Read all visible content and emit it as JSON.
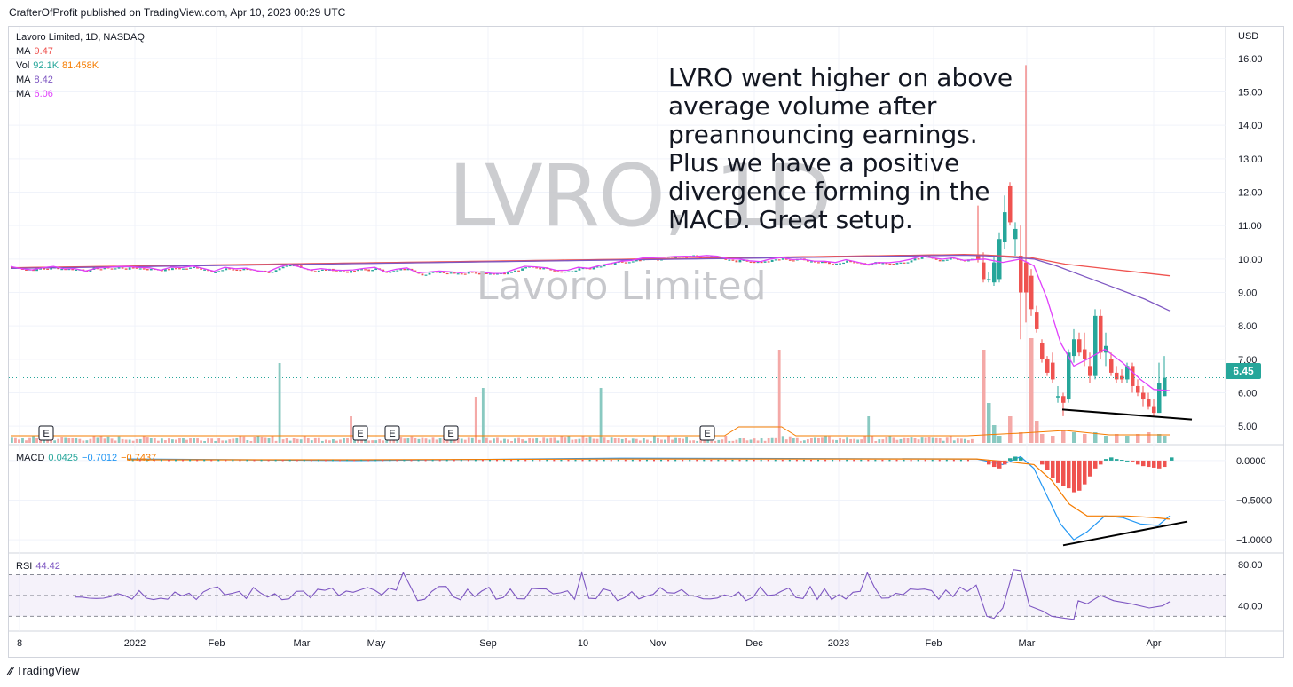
{
  "header": {
    "published": "CrafterOfProfit published on TradingView.com, Apr 10, 2023 00:29 UTC"
  },
  "legend": {
    "symbol": "Lavoro Limited, 1D, NASDAQ",
    "ma1": {
      "label": "MA",
      "value": "9.47",
      "color": "#ef5350"
    },
    "vol": {
      "label": "Vol",
      "value1": "92.1K",
      "value2": "81.458K",
      "color1": "#26a69a",
      "color2": "#f57c00"
    },
    "ma2": {
      "label": "MA",
      "value": "8.42",
      "color": "#7e57c2"
    },
    "ma3": {
      "label": "MA",
      "value": "6.06",
      "color": "#e040fb"
    }
  },
  "macd_legend": {
    "label": "MACD",
    "v1": "0.0425",
    "v2": "−0.7012",
    "v3": "−0.7437",
    "c1": "#26a69a",
    "c2": "#2196f3",
    "c3": "#f57c00"
  },
  "rsi_legend": {
    "label": "RSI",
    "value": "44.42",
    "color": "#7e57c2"
  },
  "annotation": {
    "lines": [
      "LVRO went higher on above",
      "average volume after",
      "preannouncing earnings.",
      "Plus we have a positive",
      "divergence forming in the",
      "MACD. Great setup."
    ]
  },
  "watermark": {
    "ticker": "LVRO, 1D",
    "name": "Lavoro Limited"
  },
  "price_axis": {
    "currency": "USD",
    "last_price": "6.45",
    "last_color": "#26a69a"
  },
  "footer": {
    "brand": "TradingView"
  },
  "earnings_marker": "E",
  "chart_data": {
    "type": "candlestick",
    "price_ylim": [
      4.5,
      16.5
    ],
    "price_ticks": [
      "16.00",
      "15.00",
      "14.00",
      "13.00",
      "12.00",
      "11.00",
      "10.00",
      "9.00",
      "8.00",
      "7.00",
      "6.00",
      "5.00"
    ],
    "macd_ticks": [
      "0.0000",
      "−0.5000",
      "−1.0000"
    ],
    "macd_ylim": [
      -1.1,
      0.1
    ],
    "rsi_ticks": [
      "80.00",
      "40.00"
    ],
    "rsi_ylim": [
      20,
      85
    ],
    "rsi_band": [
      30,
      70
    ],
    "x_labels": [
      "8",
      "2022",
      "Feb",
      "Mar",
      "May",
      "Sep",
      "10",
      "Nov",
      "Dec",
      "2023",
      "Feb",
      "Mar",
      "Apr"
    ],
    "earnings_count": 6,
    "series": [
      {
        "name": "MA",
        "value": "9.47"
      },
      {
        "name": "MA",
        "value": "8.42"
      },
      {
        "name": "MA",
        "value": "6.06"
      }
    ],
    "late_candles": [
      {
        "o": 10.1,
        "h": 11.6,
        "l": 9.9,
        "c": 10.0
      },
      {
        "o": 9.9,
        "h": 10.2,
        "l": 9.3,
        "c": 9.4
      },
      {
        "o": 9.4,
        "h": 9.6,
        "l": 9.3,
        "c": 9.4
      },
      {
        "o": 9.3,
        "h": 10.1,
        "l": 9.2,
        "c": 9.9
      },
      {
        "o": 9.4,
        "h": 10.8,
        "l": 9.3,
        "c": 10.6
      },
      {
        "o": 10.5,
        "h": 11.9,
        "l": 10.3,
        "c": 11.4
      },
      {
        "o": 12.2,
        "h": 12.3,
        "l": 11.0,
        "c": 11.1
      },
      {
        "o": 10.6,
        "h": 11.1,
        "l": 10.1,
        "c": 10.9
      },
      {
        "o": 10.1,
        "h": 11.0,
        "l": 7.6,
        "c": 9.0
      },
      {
        "o": 9.9,
        "h": 15.8,
        "l": 8.1,
        "c": 9.0
      },
      {
        "o": 9.5,
        "h": 9.7,
        "l": 8.3,
        "c": 8.5
      },
      {
        "o": 8.4,
        "h": 8.6,
        "l": 7.8,
        "c": 7.9
      },
      {
        "o": 7.5,
        "h": 7.6,
        "l": 6.9,
        "c": 7.0
      },
      {
        "o": 7.0,
        "h": 7.1,
        "l": 6.5,
        "c": 6.6
      },
      {
        "o": 6.9,
        "h": 7.2,
        "l": 6.3,
        "c": 6.4
      },
      {
        "o": 5.9,
        "h": 6.2,
        "l": 5.7,
        "c": 5.9
      },
      {
        "o": 5.9,
        "h": 6.0,
        "l": 5.3,
        "c": 5.7
      },
      {
        "o": 5.8,
        "h": 7.3,
        "l": 5.7,
        "c": 7.2
      },
      {
        "o": 7.1,
        "h": 7.9,
        "l": 6.9,
        "c": 7.6
      },
      {
        "o": 7.6,
        "h": 7.8,
        "l": 7.1,
        "c": 7.2
      },
      {
        "o": 7.3,
        "h": 7.8,
        "l": 6.8,
        "c": 7.0
      },
      {
        "o": 6.8,
        "h": 7.2,
        "l": 6.3,
        "c": 6.5
      },
      {
        "o": 6.5,
        "h": 8.5,
        "l": 6.4,
        "c": 8.3
      },
      {
        "o": 8.3,
        "h": 8.5,
        "l": 7.0,
        "c": 7.2
      },
      {
        "o": 7.2,
        "h": 7.8,
        "l": 6.8,
        "c": 7.4
      },
      {
        "o": 7.0,
        "h": 7.2,
        "l": 6.5,
        "c": 6.6
      },
      {
        "o": 6.6,
        "h": 6.8,
        "l": 6.3,
        "c": 6.4
      },
      {
        "o": 6.5,
        "h": 6.7,
        "l": 6.3,
        "c": 6.4
      },
      {
        "o": 6.4,
        "h": 6.9,
        "l": 6.3,
        "c": 6.8
      },
      {
        "o": 6.8,
        "h": 6.9,
        "l": 6.0,
        "c": 6.2
      },
      {
        "o": 6.2,
        "h": 6.4,
        "l": 5.9,
        "c": 6.0
      },
      {
        "o": 6.0,
        "h": 6.2,
        "l": 5.6,
        "c": 5.8
      },
      {
        "o": 5.8,
        "h": 6.0,
        "l": 5.5,
        "c": 5.6
      },
      {
        "o": 5.6,
        "h": 5.8,
        "l": 5.3,
        "c": 5.4
      },
      {
        "o": 5.4,
        "h": 6.9,
        "l": 5.4,
        "c": 6.3
      },
      {
        "o": 5.9,
        "h": 7.1,
        "l": 5.9,
        "c": 6.45
      }
    ]
  }
}
